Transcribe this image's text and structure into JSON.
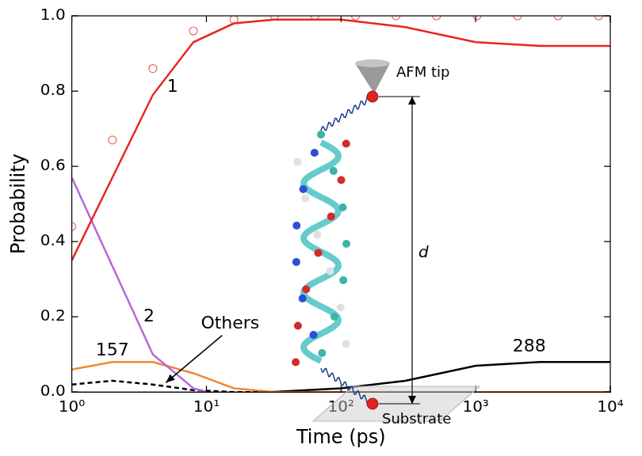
{
  "chart_data": {
    "type": "line",
    "x_label": "Time (ps)",
    "y_label": "Probability",
    "log": "x",
    "grid": false,
    "xlim": [
      1,
      10000
    ],
    "xticks": [
      {
        "value": 1,
        "label": "10⁰"
      },
      {
        "value": 10,
        "label": "10¹"
      },
      {
        "value": 100,
        "label": "10²"
      },
      {
        "value": 1000,
        "label": "10³"
      },
      {
        "value": 10000,
        "label": "10⁴"
      }
    ],
    "ylim": [
      0,
      1
    ],
    "yticks": [
      {
        "value": 0,
        "label": "0.0"
      },
      0.2,
      0.4,
      0.6,
      0.8,
      {
        "value": 1,
        "label": "1.0"
      }
    ],
    "series": [
      {
        "color": "#e8261e",
        "line_style": "solid",
        "marker": "none",
        "x": [
          1,
          4,
          8,
          16,
          32,
          100,
          300,
          1000,
          3000,
          10000
        ],
        "values": [
          0.35,
          0.79,
          0.93,
          0.98,
          0.99,
          0.99,
          0.97,
          0.93,
          0.92,
          0.92
        ]
      },
      {
        "color": "#e06b5a",
        "line_style": "none",
        "marker": "circle",
        "x": [
          1,
          2,
          4,
          8,
          16,
          32,
          64,
          128,
          256,
          512,
          1024,
          2048,
          4096,
          8192
        ],
        "values": [
          0.44,
          0.67,
          0.86,
          0.96,
          0.99,
          1.0,
          1.0,
          1.0,
          1.0,
          1.0,
          1.0,
          1.0,
          1.0,
          1.0
        ]
      },
      {
        "color": "#b868d8",
        "line_style": "solid",
        "marker": "none",
        "x": [
          1,
          4,
          8,
          10
        ],
        "values": [
          0.57,
          0.1,
          0.01,
          0.0
        ]
      },
      {
        "color": "#f08a2c",
        "line_style": "solid",
        "marker": "none",
        "x": [
          1,
          2,
          4,
          8,
          16,
          32,
          100,
          1000,
          10000
        ],
        "values": [
          0.06,
          0.08,
          0.08,
          0.05,
          0.01,
          0.0,
          0.0,
          0.0,
          0.0
        ]
      },
      {
        "color": "#000000",
        "line_style": "dashed",
        "marker": "none",
        "x": [
          1,
          2,
          4,
          8,
          16,
          100,
          1000,
          10000
        ],
        "values": [
          0.02,
          0.03,
          0.02,
          0.005,
          0.0,
          0.0,
          0.0,
          0.0
        ]
      },
      {
        "color": "#000000",
        "line_style": "solid",
        "marker": "none",
        "x": [
          30,
          100,
          300,
          1000,
          3000,
          10000
        ],
        "values": [
          0.0,
          0.01,
          0.03,
          0.07,
          0.08,
          0.08
        ]
      }
    ],
    "annotations": [
      {
        "text": "1",
        "x": 5.6,
        "y": 0.81
      },
      {
        "text": "2",
        "x": 3.75,
        "y": 0.2
      },
      {
        "text": "157",
        "x": 2.0,
        "y": 0.11
      },
      {
        "text": "288",
        "x": 2500,
        "y": 0.12
      },
      {
        "text": "Others",
        "x": 15,
        "y": 0.18,
        "arrow_to": [
          5,
          0.025
        ]
      }
    ],
    "inset": {
      "labels": [
        "AFM tip",
        "d",
        "Substrate"
      ]
    }
  }
}
